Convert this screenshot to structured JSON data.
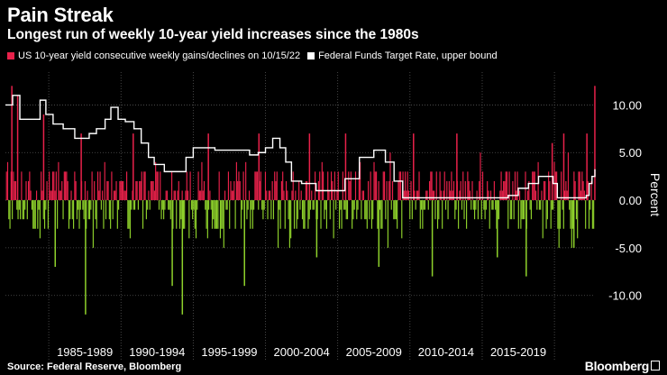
{
  "title": "Pain Streak",
  "subtitle": "Longest run of weekly 10-year yield increases since the 1980s",
  "source": "Source: Federal Reserve, Bloomberg",
  "brand": "Bloomberg",
  "colors": {
    "gain": "#e8214a",
    "decline": "#8ed12b",
    "fedfunds": "#ffffff",
    "grid": "#555555"
  },
  "legend": [
    {
      "label": "US 10-year yield consecutive weekly gains/declines on 10/15/22",
      "color": "#e8214a"
    },
    {
      "label": "Federal Funds Target Rate, upper bound",
      "color": "#ffffff"
    }
  ],
  "chart_data": {
    "type": "bar",
    "ylabel": "Percent",
    "ylim": [
      -14,
      12.5
    ],
    "xlim": [
      1982.0,
      2022.8
    ],
    "y_ticks": [
      10,
      5,
      0,
      -5,
      -10
    ],
    "y_tick_labels": [
      "10.00",
      "5.00",
      "0.00",
      "-5.00",
      "-10.00"
    ],
    "x_tick_labels": [
      "1985-1989",
      "1990-1994",
      "1995-1999",
      "2000-2004",
      "2005-2009",
      "2010-2014",
      "2015-2019"
    ],
    "x_tick_centers": [
      1987.5,
      1992.5,
      1997.5,
      2002.5,
      2007.5,
      2012.5,
      2017.5
    ],
    "series": [
      {
        "name": "US 10-year yield consecutive weekly gains/declines on 10/15/22",
        "kind": "bars",
        "gain_color": "#e8214a",
        "decline_color": "#8ed12b",
        "highlights": [
          {
            "x": 1982.4,
            "value": 12
          },
          {
            "x": 1982.8,
            "value": 11
          },
          {
            "x": 1984.6,
            "value": 9
          },
          {
            "x": 1987.2,
            "value": 7
          },
          {
            "x": 1985.4,
            "value": -7
          },
          {
            "x": 1987.5,
            "value": -12
          },
          {
            "x": 1990.8,
            "value": 7
          },
          {
            "x": 1994.2,
            "value": -12
          },
          {
            "x": 1993.5,
            "value": -9
          },
          {
            "x": 1996.0,
            "value": 7
          },
          {
            "x": 1998.5,
            "value": -9
          },
          {
            "x": 1999.5,
            "value": 7
          },
          {
            "x": 2003.0,
            "value": 7
          },
          {
            "x": 2005.5,
            "value": 7
          },
          {
            "x": 2003.5,
            "value": -6
          },
          {
            "x": 2007.8,
            "value": -7
          },
          {
            "x": 2010.2,
            "value": 7
          },
          {
            "x": 2011.5,
            "value": -8
          },
          {
            "x": 2013.2,
            "value": 7
          },
          {
            "x": 2016.0,
            "value": -6
          },
          {
            "x": 2018.0,
            "value": -8
          },
          {
            "x": 2019.8,
            "value": 6
          },
          {
            "x": 2020.6,
            "value": 7
          },
          {
            "x": 2021.3,
            "value": -5
          },
          {
            "x": 2022.2,
            "value": 7
          },
          {
            "x": 2022.75,
            "value": 12
          }
        ]
      },
      {
        "name": "Federal Funds Target Rate, upper bound",
        "kind": "line",
        "x": [
          1982.0,
          1982.5,
          1983.0,
          1983.4,
          1984.0,
          1984.4,
          1984.8,
          1985.3,
          1986.0,
          1986.8,
          1987.2,
          1987.8,
          1988.3,
          1988.9,
          1989.3,
          1989.8,
          1990.3,
          1990.9,
          1991.4,
          1991.9,
          1992.3,
          1993.0,
          1994.0,
          1994.5,
          1995.0,
          1995.8,
          1996.5,
          1998.5,
          1998.9,
          1999.5,
          2000.0,
          2000.5,
          2001.0,
          2001.4,
          2001.8,
          2002.5,
          2003.5,
          2004.5,
          2005.5,
          2006.5,
          2007.5,
          2007.9,
          2008.3,
          2008.9,
          2009.5,
          2015.9,
          2016.8,
          2017.5,
          2018.2,
          2018.9,
          2019.5,
          2019.9,
          2020.2,
          2022.0,
          2022.2,
          2022.4,
          2022.6,
          2022.8
        ],
        "values": [
          10,
          11,
          8.5,
          8.5,
          8.5,
          10.5,
          9,
          8,
          7.5,
          6.5,
          6.5,
          7,
          7.5,
          8.5,
          9.75,
          8.5,
          8.25,
          7.5,
          6,
          4.5,
          3.75,
          3,
          3,
          4.5,
          5.5,
          5.5,
          5.25,
          5.25,
          4.75,
          5,
          5.5,
          6.5,
          5.5,
          4,
          2,
          1.75,
          1,
          1,
          2.25,
          4.5,
          5.25,
          5.25,
          4,
          2,
          0.25,
          0.25,
          0.5,
          1.25,
          1.75,
          2.5,
          2.5,
          1.75,
          0.25,
          0.25,
          0.5,
          1.75,
          2.5,
          3.25
        ]
      }
    ]
  }
}
